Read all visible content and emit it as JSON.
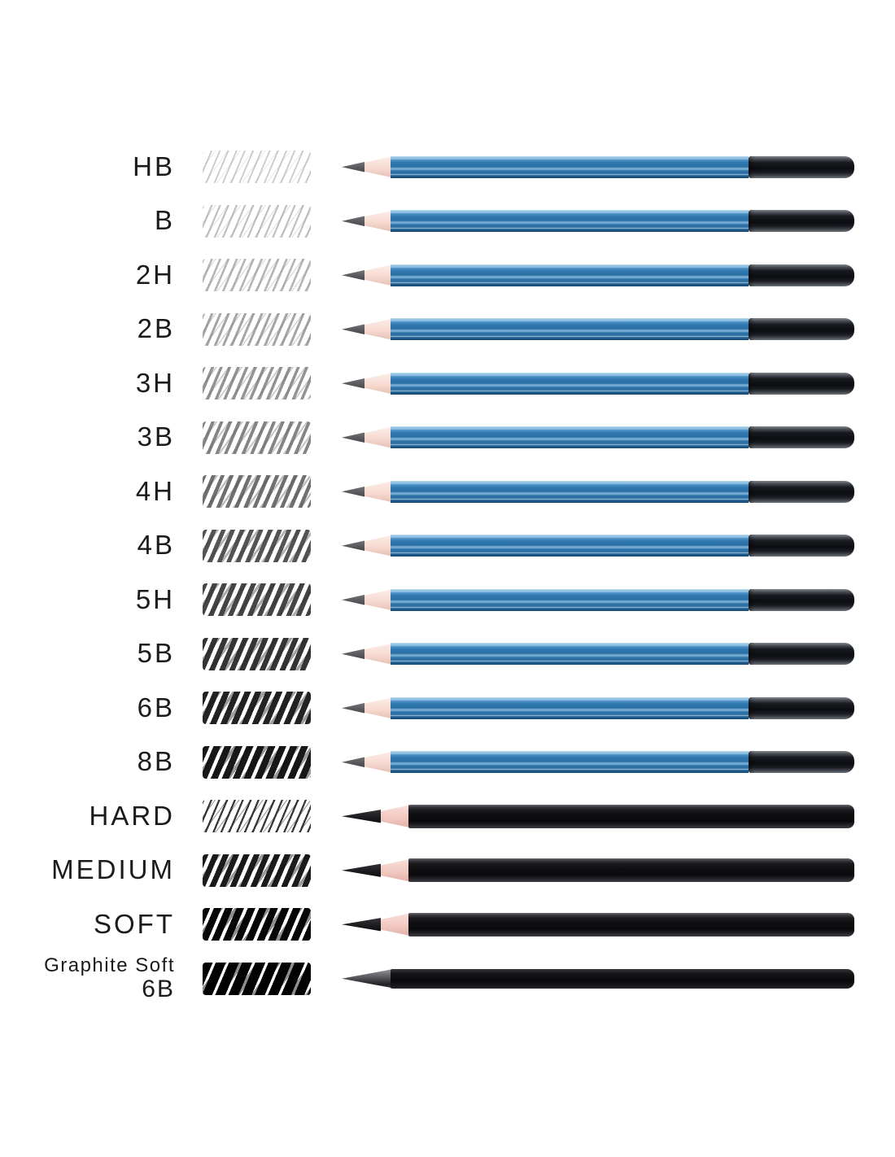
{
  "page": {
    "description": "Pencil grade comparison chart: grade label, hand-drawn shade swatch, pencil image",
    "background": "#ffffff"
  },
  "colors": {
    "label_text": "#1b1b1b",
    "blue_main": "#2f78af",
    "blue_dark": "#174b74",
    "wood": "#f6dad0",
    "graphite_tip": "#3c3c41",
    "cap_black": "#0c0d11",
    "charcoal_wood": "#f2c9c2",
    "charcoal_tip": "#0b0b0e",
    "charcoal_body": "#0e0e11",
    "woodless_cone": "#222226",
    "woodless_body": "#0a0a0c"
  },
  "rows": [
    {
      "label": "HB",
      "pencil_type": "graphite",
      "swatch": {
        "line": 1.8,
        "gap": 7.6,
        "color": "#9e9e9e",
        "alpha": 0.55
      }
    },
    {
      "label": "B",
      "pencil_type": "graphite",
      "swatch": {
        "line": 2.2,
        "gap": 7.2,
        "color": "#979797",
        "alpha": 0.6
      }
    },
    {
      "label": "2H",
      "pencil_type": "graphite",
      "swatch": {
        "line": 2.6,
        "gap": 6.8,
        "color": "#8f8f8f",
        "alpha": 0.66
      }
    },
    {
      "label": "2B",
      "pencil_type": "graphite",
      "swatch": {
        "line": 3.0,
        "gap": 6.4,
        "color": "#828282",
        "alpha": 0.72
      }
    },
    {
      "label": "3H",
      "pencil_type": "graphite",
      "swatch": {
        "line": 3.5,
        "gap": 6.2,
        "color": "#757575",
        "alpha": 0.78
      }
    },
    {
      "label": "3B",
      "pencil_type": "graphite",
      "swatch": {
        "line": 3.9,
        "gap": 6.0,
        "color": "#6a6a6a",
        "alpha": 0.82
      }
    },
    {
      "label": "4H",
      "pencil_type": "graphite",
      "swatch": {
        "line": 4.5,
        "gap": 5.8,
        "color": "#585858",
        "alpha": 0.86
      }
    },
    {
      "label": "4B",
      "pencil_type": "graphite",
      "swatch": {
        "line": 5.2,
        "gap": 5.4,
        "color": "#424242",
        "alpha": 0.9
      }
    },
    {
      "label": "5H",
      "pencil_type": "graphite",
      "swatch": {
        "line": 5.8,
        "gap": 5.2,
        "color": "#353535",
        "alpha": 0.92
      }
    },
    {
      "label": "5B",
      "pencil_type": "graphite",
      "swatch": {
        "line": 6.4,
        "gap": 5.0,
        "color": "#282828",
        "alpha": 0.94
      }
    },
    {
      "label": "6B",
      "pencil_type": "graphite",
      "swatch": {
        "line": 7.2,
        "gap": 4.7,
        "color": "#1a1a1a",
        "alpha": 0.96
      }
    },
    {
      "label": "8B",
      "pencil_type": "graphite",
      "swatch": {
        "line": 8.0,
        "gap": 4.4,
        "color": "#101010",
        "alpha": 0.97
      }
    },
    {
      "label": "HARD",
      "pencil_type": "charcoal",
      "swatch": {
        "line": 2.3,
        "gap": 6.6,
        "color": "#262626",
        "alpha": 0.92
      }
    },
    {
      "label": "MEDIUM",
      "pencil_type": "charcoal",
      "swatch": {
        "line": 6.8,
        "gap": 4.8,
        "color": "#141414",
        "alpha": 0.97
      }
    },
    {
      "label": "SOFT",
      "pencil_type": "charcoal",
      "swatch": {
        "line": 8.6,
        "gap": 4.2,
        "color": "#060606",
        "alpha": 1
      }
    },
    {
      "label": "Graphite Soft",
      "label2": "6B",
      "pencil_type": "woodless",
      "swatch": {
        "line": 11.5,
        "gap": 3.4,
        "color": "#020202",
        "alpha": 1
      }
    }
  ]
}
